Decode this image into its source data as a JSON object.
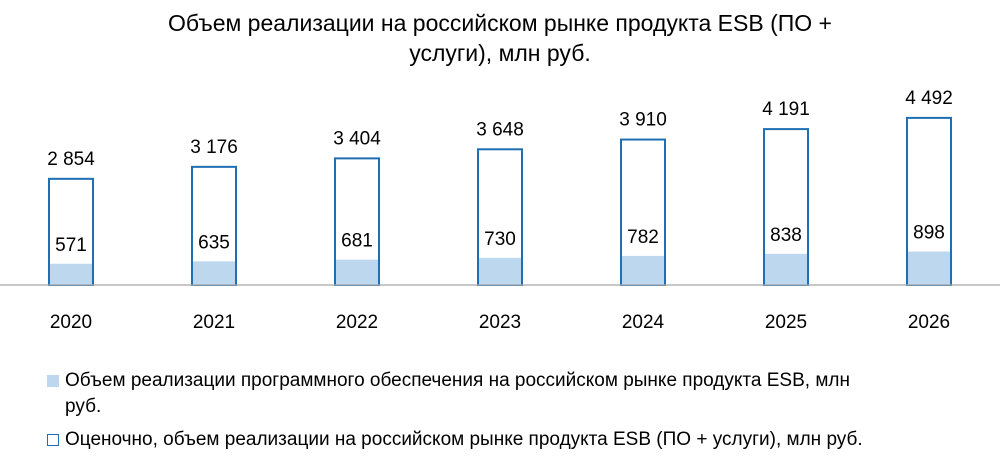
{
  "chart_data": {
    "type": "bar",
    "title_line1": "Объем реализации на российском рынке продукта ESB (ПО +",
    "title_line2": "услуги), млн руб.",
    "categories": [
      "2020",
      "2021",
      "2022",
      "2023",
      "2024",
      "2025",
      "2026"
    ],
    "category_labels": [
      "2020",
      "2021",
      "2022",
      "2023",
      "2024",
      "2025",
      "2026"
    ],
    "series": [
      {
        "name": "Объем реализации программного обеспечения на российском рынке продукта ESB, млн руб.",
        "values": [
          571,
          635,
          681,
          730,
          782,
          838,
          898
        ],
        "labels": [
          "571",
          "635",
          "681",
          "730",
          "782",
          "838",
          "898"
        ],
        "color": "#bdd7ee"
      },
      {
        "name": "Оценочно, объем реализации на российском рынке продукта ESB (ПО + услуги), млн руб.",
        "values": [
          2854,
          3176,
          3404,
          3648,
          3910,
          4191,
          4492
        ],
        "labels": [
          "2 854",
          "3 176",
          "3 404",
          "3 648",
          "3 910",
          "4 191",
          "4 492"
        ],
        "color": "#1f6fb4"
      }
    ],
    "ylim": [
      0,
      5000
    ],
    "grid": false,
    "legend_position": "bottom"
  },
  "legend": {
    "software_line1": "Объем реализации программного обеспечения на российском рынке продукта ESB, млн",
    "software_line2": "руб.",
    "total": "Оценочно, объем реализации на российском рынке продукта ESB (ПО + услуги), млн руб."
  }
}
